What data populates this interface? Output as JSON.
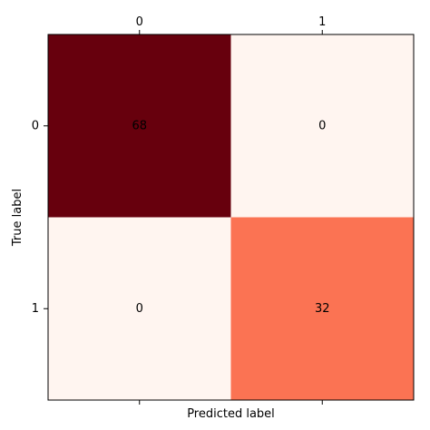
{
  "chart_data": {
    "type": "heatmap",
    "title": "",
    "xlabel": "Predicted label",
    "ylabel": "True label",
    "x_categories": [
      "0",
      "1"
    ],
    "y_categories": [
      "0",
      "1"
    ],
    "values": [
      [
        68,
        0
      ],
      [
        0,
        32
      ]
    ],
    "value_range": [
      0,
      68
    ],
    "colormap": "Reds",
    "x_ticks_position": "top",
    "grid": false,
    "legend": "none"
  }
}
